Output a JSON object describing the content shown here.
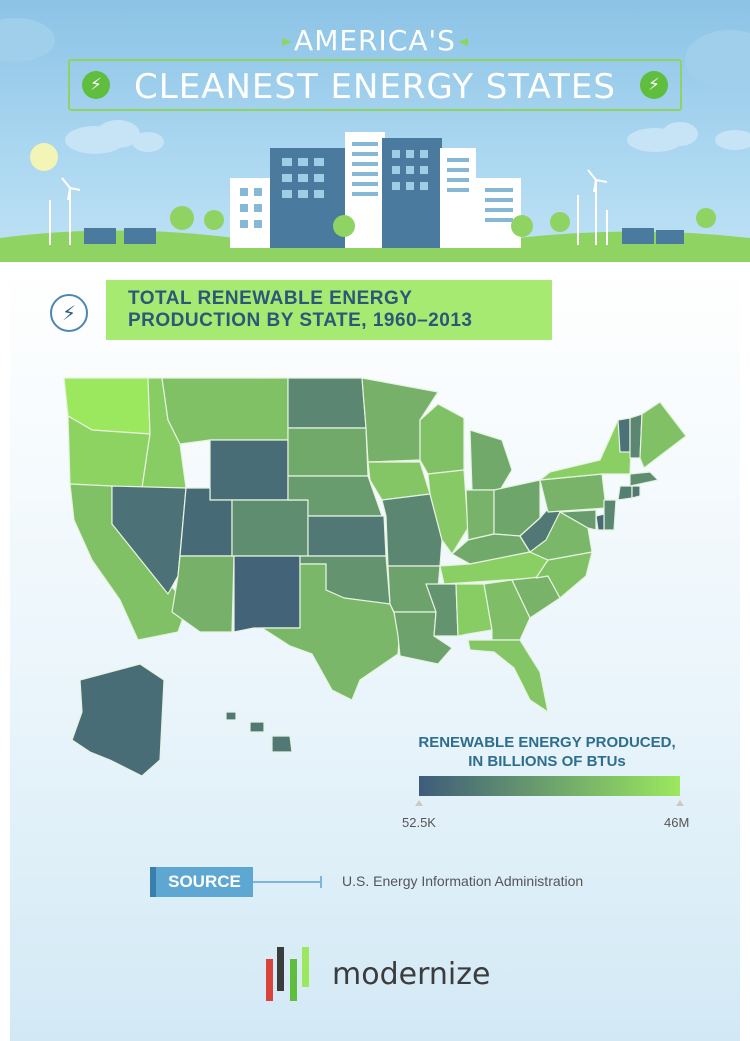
{
  "header": {
    "title_line1": "AMERICA'S",
    "title_line2": "CLEANEST ENERGY STATES"
  },
  "section": {
    "title": "TOTAL RENEWABLE ENERGY PRODUCTION BY STATE, 1960–2013",
    "icon": "lightning-bolt-icon"
  },
  "legend": {
    "title": "RENEWABLE ENERGY PRODUCED, IN BILLIONS OF BTUs",
    "min_label": "52.5K",
    "max_label": "46M",
    "low_color": "#3e5c7a",
    "high_color": "#9be85e"
  },
  "source": {
    "label": "SOURCE",
    "text": "U.S. Energy Information Administration"
  },
  "brand": {
    "name": "modernize",
    "colors": [
      "#d9433b",
      "#3c3c3c",
      "#5fbe3e",
      "#9be85e"
    ]
  },
  "colors": {
    "sky": "#a9d6f0",
    "accent_green": "#a6ea72",
    "title_blue": "#2d5679"
  },
  "state_levels": {
    "WA": 1.0,
    "OR": 0.85,
    "CA": 0.72,
    "ID": 0.8,
    "NV": 0.15,
    "MT": 0.72,
    "WY": 0.12,
    "UT": 0.1,
    "AZ": 0.6,
    "CO": 0.35,
    "NM": 0.05,
    "ND": 0.3,
    "SD": 0.55,
    "NE": 0.45,
    "KS": 0.2,
    "OK": 0.4,
    "TX": 0.65,
    "MN": 0.6,
    "IA": 0.75,
    "MO": 0.3,
    "AR": 0.5,
    "LA": 0.5,
    "WI": 0.72,
    "IL": 0.78,
    "MI": 0.55,
    "IN": 0.62,
    "OH": 0.52,
    "KY": 0.55,
    "TN": 0.82,
    "MS": 0.4,
    "AL": 0.8,
    "GA": 0.7,
    "FL": 0.75,
    "SC": 0.62,
    "NC": 0.72,
    "VA": 0.65,
    "WV": 0.2,
    "PA": 0.62,
    "NY": 0.82,
    "VT": 0.15,
    "NH": 0.3,
    "ME": 0.72,
    "MA": 0.35,
    "CT": 0.25,
    "RI": 0.2,
    "NJ": 0.3,
    "DE": 0.1,
    "MD": 0.45,
    "AK": 0.12,
    "HI": 0.2
  }
}
